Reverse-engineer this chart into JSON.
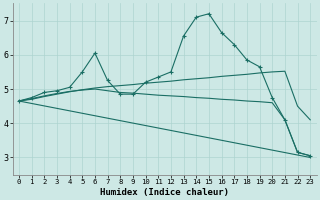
{
  "background_color": "#cde8e5",
  "grid_color": "#aed4d0",
  "line_color": "#1a6e64",
  "xlabel": "Humidex (Indice chaleur)",
  "xlim": [
    -0.5,
    23.5
  ],
  "ylim": [
    2.5,
    7.5
  ],
  "xticks": [
    0,
    1,
    2,
    3,
    4,
    5,
    6,
    7,
    8,
    9,
    10,
    11,
    12,
    13,
    14,
    15,
    16,
    17,
    18,
    19,
    20,
    21,
    22,
    23
  ],
  "yticks": [
    3,
    4,
    5,
    6,
    7
  ],
  "line1_x": [
    0,
    1,
    2,
    3,
    4,
    5,
    6,
    7,
    8,
    9,
    10,
    11,
    12,
    13,
    14,
    15,
    16,
    17,
    18,
    19,
    20,
    21,
    22,
    23
  ],
  "line1_y": [
    4.65,
    4.75,
    4.9,
    4.95,
    5.05,
    5.5,
    6.05,
    5.25,
    4.85,
    4.85,
    5.2,
    5.35,
    5.5,
    6.55,
    7.1,
    7.2,
    6.65,
    6.3,
    5.85,
    5.65,
    4.75,
    4.1,
    3.15,
    3.05
  ],
  "line2_x": [
    0,
    1,
    2,
    3,
    4,
    5,
    6,
    7,
    8,
    9,
    10,
    11,
    12,
    13,
    14,
    15,
    16,
    17,
    18,
    19,
    20,
    21,
    22,
    23
  ],
  "line2_y": [
    4.65,
    4.7,
    4.78,
    4.85,
    4.92,
    4.98,
    5.03,
    5.07,
    5.1,
    5.13,
    5.17,
    5.2,
    5.23,
    5.27,
    5.3,
    5.33,
    5.37,
    5.4,
    5.43,
    5.47,
    5.5,
    5.52,
    4.5,
    4.1
  ],
  "line3_x": [
    0,
    1,
    2,
    3,
    4,
    5,
    6,
    7,
    8,
    9,
    10,
    11,
    12,
    13,
    14,
    15,
    16,
    17,
    18,
    19,
    20,
    21,
    22,
    23
  ],
  "line3_y": [
    4.65,
    4.72,
    4.8,
    4.87,
    4.93,
    4.97,
    5.0,
    4.95,
    4.9,
    4.88,
    4.85,
    4.82,
    4.8,
    4.78,
    4.75,
    4.73,
    4.7,
    4.68,
    4.65,
    4.63,
    4.6,
    4.1,
    3.15,
    3.05
  ],
  "line4_x": [
    0,
    23
  ],
  "line4_y": [
    4.65,
    3.0
  ]
}
